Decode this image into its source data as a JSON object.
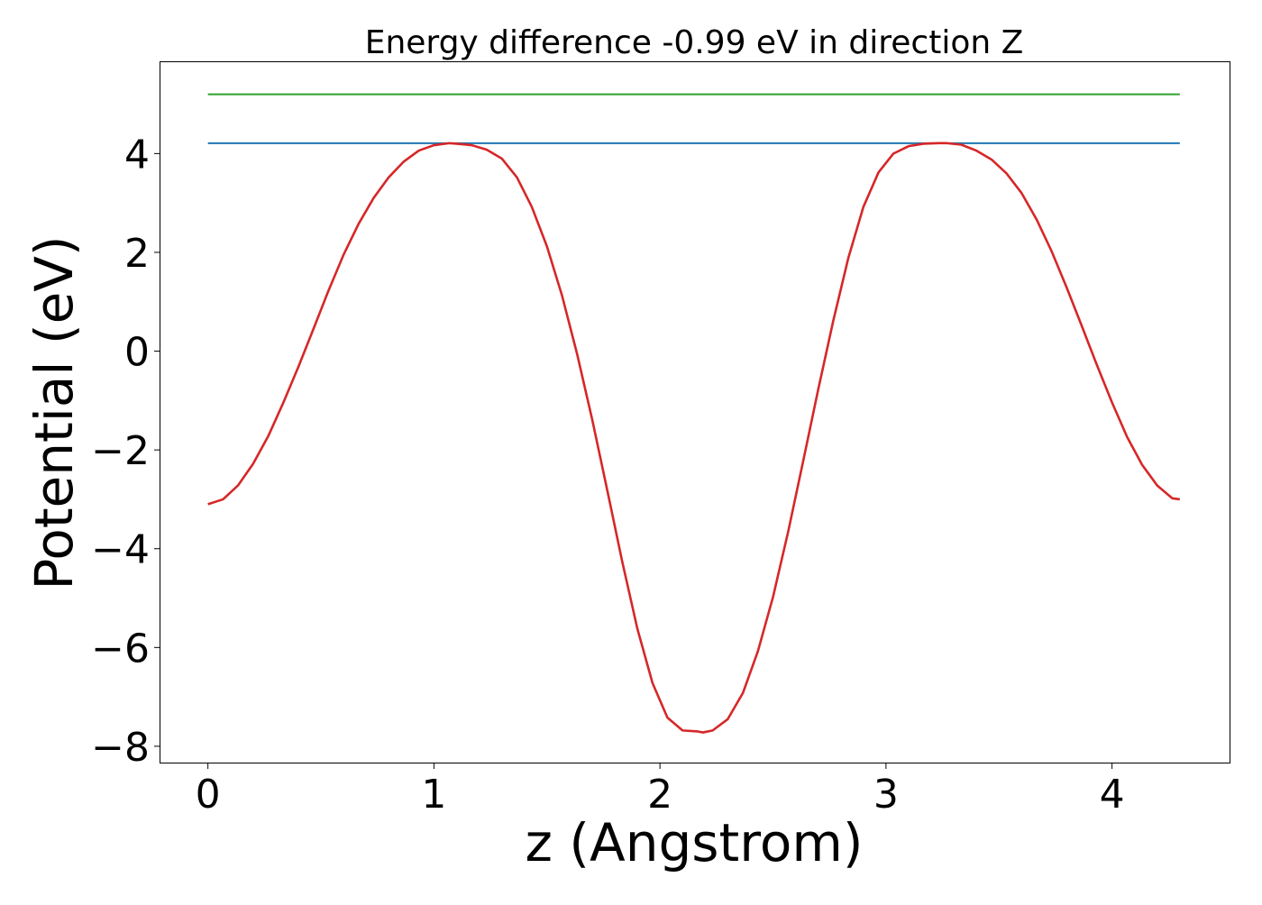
{
  "chart_data": {
    "type": "line",
    "title": "Energy difference -0.99 eV in direction Z",
    "xlabel": "z (Angstrom)",
    "ylabel": "Potential (eV)",
    "xlim": [
      -0.21,
      4.52
    ],
    "ylim": [
      -8.33,
      5.85
    ],
    "xticks": [
      0,
      1,
      2,
      3,
      4
    ],
    "yticks": [
      -8,
      -6,
      -4,
      -2,
      0,
      2,
      4
    ],
    "xtick_labels": [
      "0",
      "1",
      "2",
      "3",
      "4"
    ],
    "ytick_labels": [
      "−8",
      "−6",
      "−4",
      "−2",
      "0",
      "2",
      "4"
    ],
    "grid": false,
    "legend": "none",
    "series": [
      {
        "color": "#2ca02c",
        "x": [
          0,
          4.3
        ],
        "y": [
          5.2,
          5.2
        ]
      },
      {
        "color": "#1f77b4",
        "x": [
          0,
          4.3
        ],
        "y": [
          4.21,
          4.21
        ]
      },
      {
        "color": "#d62728",
        "x": [
          0,
          0.067,
          0.133,
          0.2,
          0.267,
          0.333,
          0.4,
          0.467,
          0.533,
          0.6,
          0.667,
          0.733,
          0.8,
          0.867,
          0.933,
          1.0,
          1.067,
          1.1,
          1.167,
          1.233,
          1.3,
          1.367,
          1.433,
          1.5,
          1.567,
          1.633,
          1.7,
          1.767,
          1.833,
          1.9,
          1.967,
          2.033,
          2.1,
          2.167,
          2.19,
          2.233,
          2.3,
          2.367,
          2.433,
          2.5,
          2.567,
          2.633,
          2.7,
          2.767,
          2.833,
          2.9,
          2.967,
          3.033,
          3.1,
          3.167,
          3.233,
          3.27,
          3.333,
          3.4,
          3.467,
          3.533,
          3.6,
          3.667,
          3.733,
          3.8,
          3.867,
          3.933,
          4.0,
          4.067,
          4.133,
          4.2,
          4.267,
          4.3
        ],
        "y": [
          -3.1,
          -3.0,
          -2.72,
          -2.28,
          -1.72,
          -1.05,
          -0.32,
          0.45,
          1.22,
          1.95,
          2.58,
          3.1,
          3.52,
          3.84,
          4.06,
          4.17,
          4.21,
          4.2,
          4.17,
          4.08,
          3.9,
          3.52,
          2.92,
          2.12,
          1.12,
          -0.05,
          -1.38,
          -2.82,
          -4.26,
          -5.62,
          -6.72,
          -7.42,
          -7.68,
          -7.7,
          -7.72,
          -7.68,
          -7.45,
          -6.92,
          -6.08,
          -4.98,
          -3.66,
          -2.24,
          -0.78,
          0.62,
          1.88,
          2.92,
          3.62,
          4.0,
          4.15,
          4.2,
          4.21,
          4.21,
          4.18,
          4.06,
          3.88,
          3.6,
          3.2,
          2.66,
          2.02,
          1.28,
          0.5,
          -0.28,
          -1.04,
          -1.74,
          -2.3,
          -2.72,
          -2.98,
          -3.0
        ]
      }
    ]
  }
}
